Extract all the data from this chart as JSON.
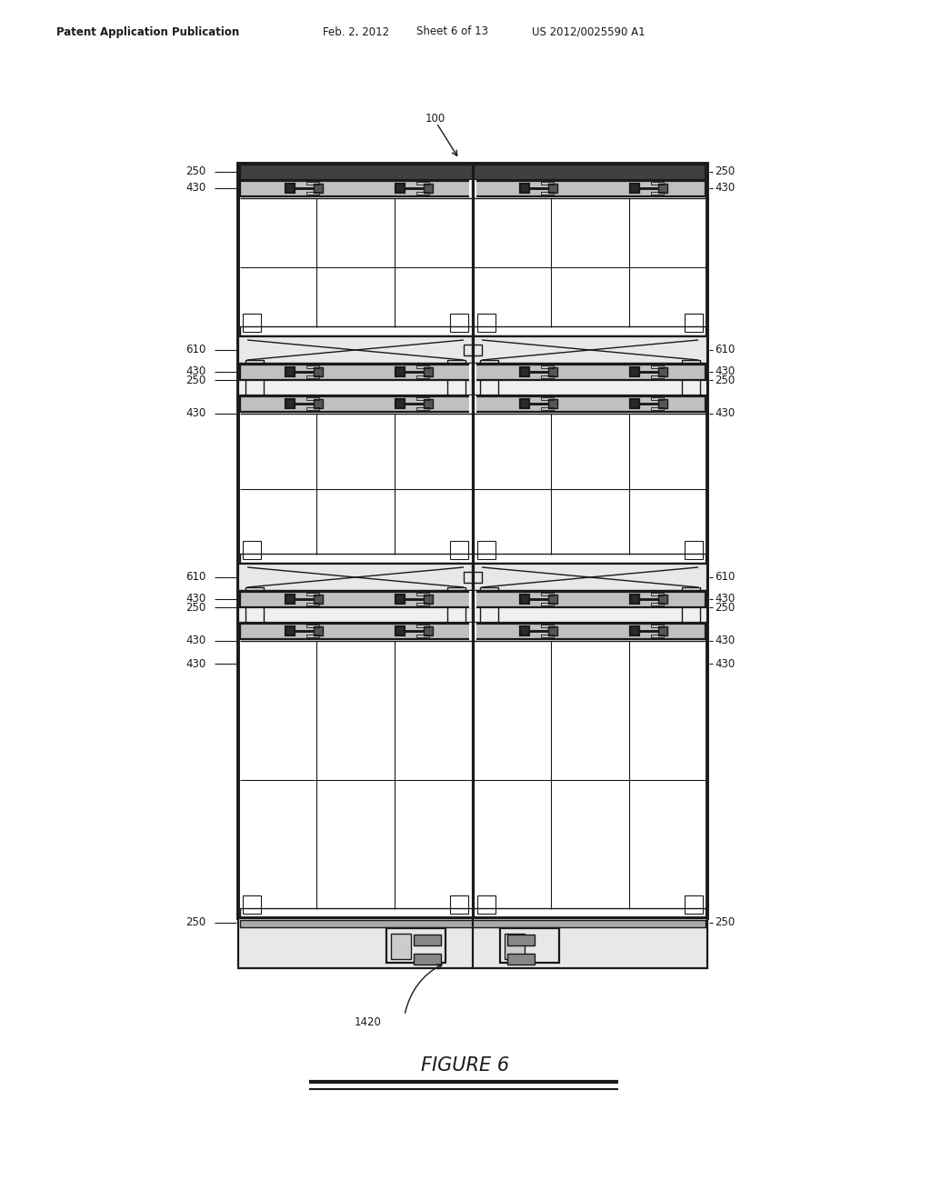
{
  "bg_color": "#ffffff",
  "line_color": "#1a1a1a",
  "header_text": "Patent Application Publication",
  "header_date": "Feb. 2, 2012",
  "header_sheet": "Sheet 6 of 13",
  "header_patent": "US 2012/0025590 A1",
  "figure_label": "FIGURE 6",
  "label_100": "100",
  "label_250": "250",
  "label_430": "430",
  "label_610": "610",
  "label_1420": "1420",
  "DL": 262,
  "DR": 778,
  "BT": 1140,
  "BB": 310,
  "DM": 520
}
